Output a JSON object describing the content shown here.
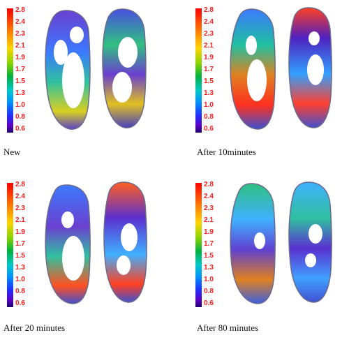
{
  "scale_ticks": [
    "2.8",
    "2.4",
    "2.3",
    "2.1",
    "1.9",
    "1.7",
    "1.5",
    "1.3",
    "1.0",
    "0.8",
    "0.6"
  ],
  "colors": {
    "scale_tick_text": "#ff1a1a",
    "outline": "#6a6a8a"
  },
  "panels": [
    {
      "caption": "New"
    },
    {
      "caption": "After 10minutes"
    },
    {
      "caption": "After 20 minutes"
    },
    {
      "caption": "After 80 minutes"
    }
  ]
}
